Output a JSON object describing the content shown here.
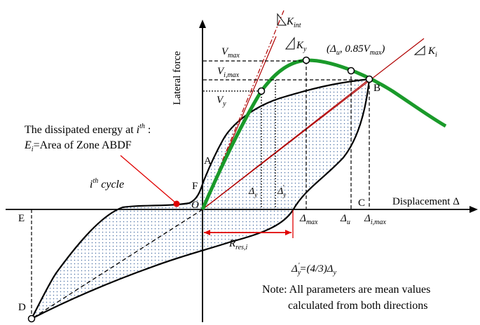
{
  "axes": {
    "y_label": "Lateral force",
    "x_label": "Displacement Δ"
  },
  "points": {
    "A": "A",
    "B": "B",
    "C": "C",
    "D": "D",
    "E": "E",
    "F": "F",
    "O": "O"
  },
  "stiffness": {
    "k_int": "K",
    "k_int_sub": "int",
    "k_y": "K",
    "k_y_sub": "y",
    "k_i": "K",
    "k_i_sub": "i"
  },
  "forces": {
    "v_max": "V",
    "v_max_sub": "max",
    "v_imax": "V",
    "v_imax_sub": "i,max",
    "v_y": "V",
    "v_y_sub": "y"
  },
  "peak_label": {
    "open": "(Δ",
    "u_sub": "u",
    "rest": ", 0.85V",
    "max_sub": "max",
    "close": ")"
  },
  "displacements": {
    "delta": "Δ",
    "max_sub": "max",
    "u_sub": "u",
    "imax_sub": "i,max",
    "y_sub": "y",
    "y_prime": "Δ",
    "y_prime_sub": "y",
    "y_prime_mark": "'"
  },
  "residual": {
    "label": "R",
    "sub": "res,i"
  },
  "cycle_label": {
    "i": "i",
    "th": "th",
    "text": " cycle"
  },
  "energy_note": {
    "line1_pre": "The dissipated energy at ",
    "line1_i": "i",
    "line1_th": "th",
    "line1_post": " :",
    "line2_e": "E",
    "line2_sub": "i",
    "line2_rest": "=Area of Zone ABDF"
  },
  "relation": {
    "lhs": "Δ",
    "lhs_sub": "y",
    "lhs_mark": "'",
    "rhs": "=(4/3)Δ",
    "rhs_sub": "y"
  },
  "note": {
    "line1": "Note:  All parameters are mean values",
    "line2": "calculated from both directions"
  },
  "colors": {
    "envelope": "#1a9a2a",
    "marker": "#e00000",
    "dots": "#4a6fa5",
    "k_line": "#b00000"
  }
}
